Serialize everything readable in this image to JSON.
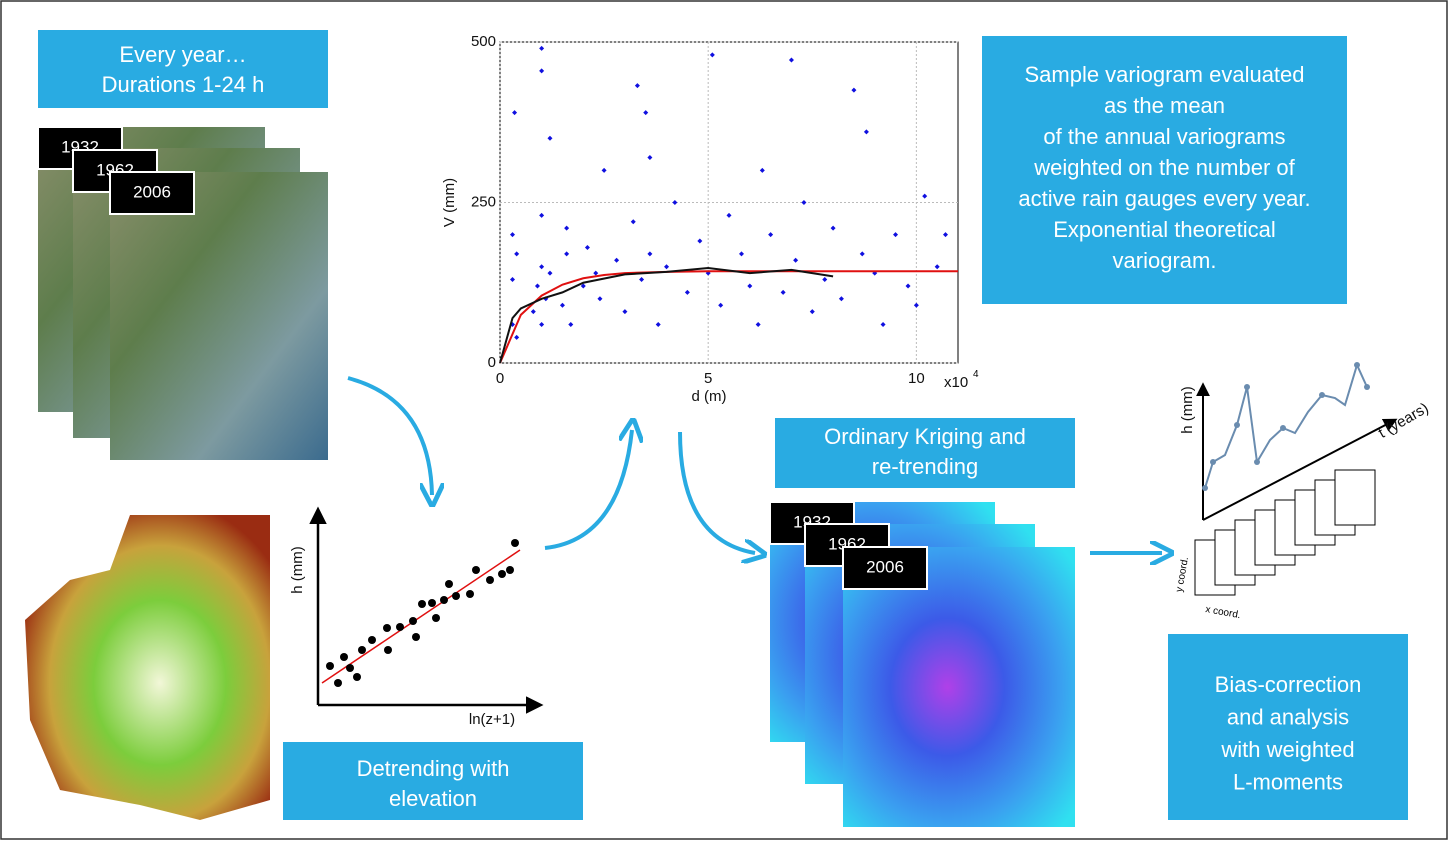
{
  "boxes": [
    {
      "lines": [
        "Every year…",
        "Durations 1-24 h"
      ]
    },
    {
      "lines": [
        "Sample variogram evaluated",
        "as the mean",
        "of the annual variograms",
        "weighted on the number of",
        "active rain gauges every year.",
        "Exponential theoretical",
        "variogram."
      ]
    },
    {
      "lines": [
        "Ordinary Kriging and",
        "re-trending"
      ]
    },
    {
      "lines": [
        "Detrending with",
        "elevation"
      ]
    },
    {
      "lines": [
        "Bias-correction",
        "and analysis",
        "with weighted",
        "L-moments"
      ]
    }
  ],
  "years_observed": [
    "1932",
    "1962",
    "2006"
  ],
  "years_kriged": [
    "1932",
    "1962",
    "2006"
  ],
  "detrend_plot": {
    "ylabel": "h (mm)",
    "xlabel": "ln(z+1)"
  },
  "series_plot": {
    "ylabel": "h (mm)",
    "xlabel": "t (years)",
    "ycoord": "y coord.",
    "xcoord": "x coord."
  },
  "chart_data": {
    "type": "scatter",
    "xlabel": "d (m)",
    "ylabel": "V (mm)",
    "x_scale_base": "x10",
    "x_scale_exponent": "4",
    "xlim": [
      0,
      11
    ],
    "ylim": [
      0,
      500
    ],
    "xticks": [
      0,
      5,
      10
    ],
    "yticks": [
      0,
      250,
      500
    ],
    "grid": true,
    "series": [
      {
        "color": "#1010e0",
        "x": [
          0.3,
          0.3,
          0.3,
          0.4,
          0.4,
          0.8,
          0.9,
          1,
          1,
          1,
          1.1,
          1.2,
          1.5,
          1.6,
          1.6,
          1.7,
          2,
          2.1,
          2.3,
          2.4,
          2.5,
          2.8,
          3,
          3.2,
          3.4,
          3.6,
          3.8,
          4,
          4.2,
          4.5,
          4.8,
          5,
          5.3,
          5.5,
          5.8,
          6,
          6.2,
          6.5,
          6.8,
          7.1,
          7.3,
          7.5,
          7.8,
          8,
          8.2,
          8.7,
          9,
          9.2,
          9.5,
          9.8,
          10,
          10.2,
          10.5,
          10.7,
          1,
          1,
          5.1,
          7,
          3.3,
          3.5,
          8.5,
          0.35,
          1.2,
          8.8,
          3.6,
          6.3
        ],
        "y": [
          60,
          130,
          200,
          40,
          170,
          80,
          120,
          150,
          60,
          230,
          100,
          140,
          90,
          210,
          170,
          60,
          120,
          180,
          140,
          100,
          300,
          160,
          80,
          220,
          130,
          170,
          60,
          150,
          250,
          110,
          190,
          140,
          90,
          230,
          170,
          120,
          60,
          200,
          110,
          160,
          250,
          80,
          130,
          210,
          100,
          170,
          140,
          60,
          200,
          120,
          90,
          260,
          150,
          200,
          490,
          455,
          480,
          472,
          432,
          390,
          425,
          390,
          350,
          360,
          320,
          300
        ]
      },
      {
        "color": "#e01010",
        "x": [
          0,
          0.5,
          1,
          1.5,
          2,
          2.5,
          3,
          4,
          5,
          7,
          11
        ],
        "y": [
          0,
          75,
          105,
          122,
          132,
          137,
          140,
          142,
          143,
          143,
          143
        ]
      },
      {
        "color": "#111111",
        "x": [
          0,
          0.3,
          0.5,
          1,
          1.5,
          2,
          3,
          4,
          5,
          6,
          7,
          8
        ],
        "y": [
          0,
          70,
          85,
          100,
          110,
          125,
          138,
          142,
          148,
          140,
          145,
          135
        ]
      }
    ]
  }
}
